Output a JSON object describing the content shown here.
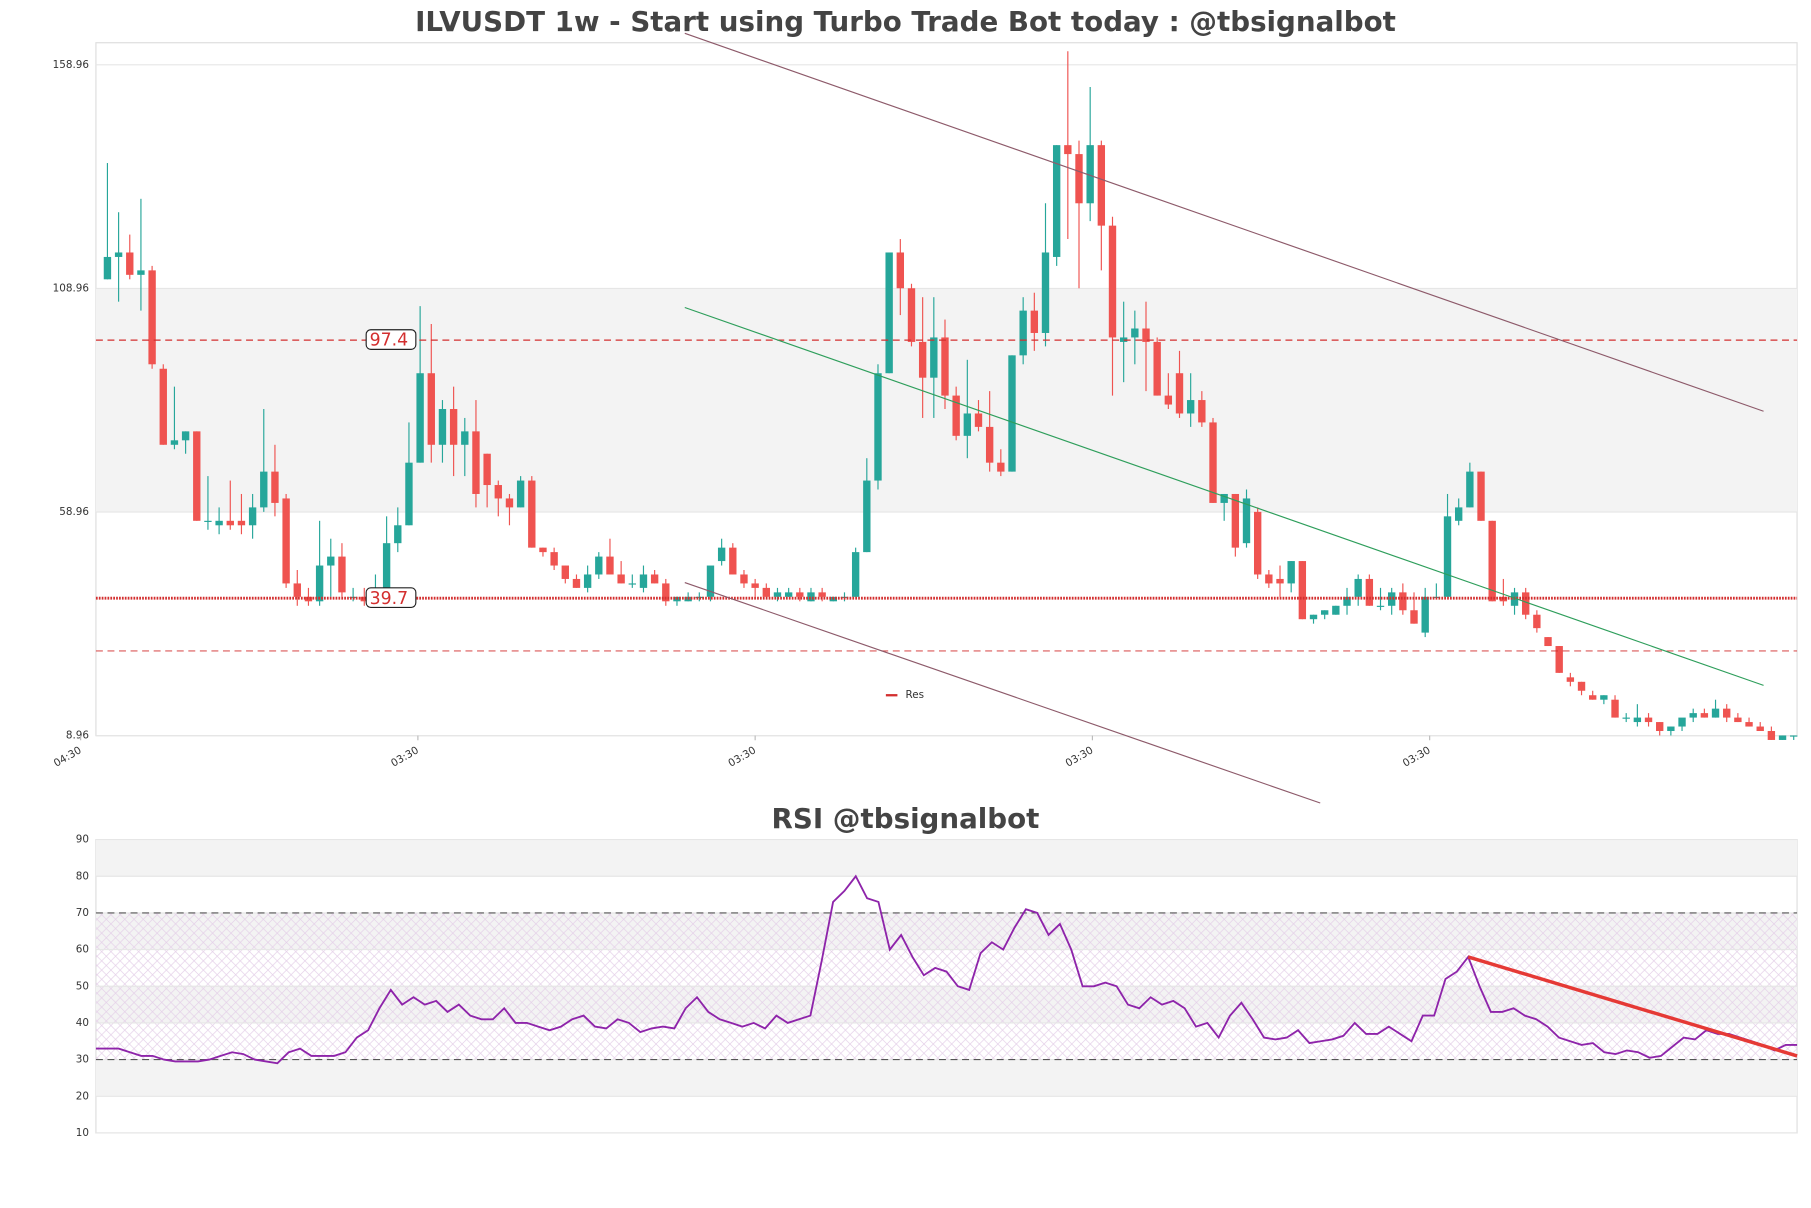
{
  "chart_data": [
    {
      "type": "candlestick",
      "title": "ILVUSDT 1w - Start using Turbo Trade Bot today : @tbsignalbot",
      "open": [
        111,
        116,
        117,
        112,
        113,
        91,
        74,
        75,
        77,
        57,
        56,
        57,
        57,
        56,
        60,
        68,
        62,
        43,
        40,
        39,
        47,
        49,
        40,
        40,
        40,
        40,
        52,
        56,
        70,
        90,
        74,
        82,
        74,
        77,
        72,
        65,
        62,
        60,
        66,
        51,
        50,
        47,
        44,
        42,
        45,
        49,
        45,
        43,
        42,
        45,
        43,
        39,
        39,
        40,
        40,
        48,
        51,
        45,
        43,
        42,
        40,
        40,
        41,
        39,
        41,
        39,
        40,
        40,
        50,
        66,
        90,
        117,
        109,
        97,
        89,
        98,
        85,
        76,
        81,
        78,
        70,
        68,
        94,
        104,
        99,
        116,
        141,
        139,
        128,
        141,
        123,
        97,
        98,
        100,
        97,
        85,
        90,
        81,
        84,
        79,
        61,
        63,
        52,
        59,
        45,
        44,
        43,
        48,
        35,
        36,
        36,
        38,
        40,
        44,
        38,
        38,
        41,
        37,
        32,
        40,
        40,
        57,
        60,
        68,
        57,
        40,
        38,
        41,
        36,
        31,
        29,
        22,
        21,
        18,
        17,
        17,
        13,
        12,
        13,
        12,
        10,
        11,
        13,
        14,
        13,
        15,
        13,
        12,
        11,
        10,
        8,
        9
      ],
      "high": [
        137,
        126,
        121,
        129,
        114,
        92,
        87,
        77,
        77,
        67,
        60,
        66,
        63,
        63,
        82,
        74,
        63,
        46,
        42,
        57,
        53,
        52,
        42,
        42,
        45,
        58,
        60,
        79,
        105,
        101,
        84,
        87,
        80,
        84,
        72,
        66,
        63,
        67,
        67,
        51,
        51,
        47,
        45,
        47,
        50,
        53,
        48,
        45,
        47,
        46,
        44,
        40,
        41,
        41,
        46,
        53,
        52,
        46,
        44,
        43,
        42,
        42,
        42,
        42,
        42,
        40,
        41,
        51,
        71,
        92,
        117,
        120,
        110,
        107,
        107,
        102,
        87,
        93,
        84,
        86,
        73,
        94,
        107,
        108,
        128,
        141,
        162,
        142,
        154,
        142,
        125,
        106,
        104,
        106,
        98,
        90,
        95,
        90,
        86,
        80,
        63,
        63,
        64,
        60,
        46,
        47,
        48,
        48,
        36,
        37,
        38,
        42,
        45,
        45,
        42,
        42,
        43,
        41,
        42,
        43,
        63,
        62,
        70,
        68,
        57,
        44,
        42,
        42,
        37,
        31,
        29,
        23,
        21,
        19,
        18,
        18,
        14,
        16,
        14,
        12,
        11,
        12,
        15,
        15,
        17,
        16,
        14,
        13,
        12,
        11,
        9,
        9
      ],
      "low": [
        111,
        106,
        111,
        104,
        91,
        74,
        73,
        72,
        57,
        55,
        54,
        55,
        54,
        53,
        59,
        58,
        42,
        38,
        38,
        38,
        40,
        40,
        39,
        38,
        39,
        40,
        50,
        56,
        70,
        70,
        70,
        67,
        67,
        60,
        60,
        58,
        56,
        60,
        51,
        49,
        46,
        43,
        42,
        41,
        44,
        45,
        43,
        42,
        41,
        43,
        38,
        38,
        39,
        39,
        39,
        47,
        45,
        42,
        40,
        40,
        39,
        40,
        39,
        39,
        39,
        39,
        39,
        40,
        50,
        64,
        90,
        103,
        96,
        80,
        80,
        82,
        75,
        71,
        77,
        68,
        67,
        68,
        92,
        95,
        96,
        114,
        120,
        109,
        124,
        113,
        85,
        88,
        92,
        86,
        85,
        82,
        80,
        78,
        78,
        61,
        57,
        49,
        51,
        44,
        42,
        40,
        41,
        35,
        34,
        35,
        36,
        36,
        38,
        38,
        37,
        36,
        36,
        34,
        31,
        40,
        40,
        56,
        60,
        57,
        39,
        38,
        36,
        35,
        32,
        29,
        23,
        20,
        18,
        17,
        16,
        13,
        12,
        11,
        11,
        9,
        9,
        10,
        12,
        13,
        13,
        12,
        12,
        11,
        10,
        8,
        8,
        8
      ],
      "close": [
        116,
        117,
        112,
        113,
        92,
        74,
        75,
        77,
        57,
        57,
        57,
        56,
        56,
        60,
        68,
        61,
        43,
        40,
        39,
        47,
        49,
        41,
        40,
        39,
        40,
        52,
        56,
        70,
        90,
        74,
        82,
        74,
        77,
        63,
        65,
        62,
        60,
        66,
        51,
        50,
        47,
        44,
        42,
        45,
        49,
        45,
        43,
        43,
        45,
        43,
        39,
        40,
        40,
        40,
        47,
        51,
        45,
        43,
        42,
        40,
        41,
        41,
        40,
        41,
        40,
        40,
        40,
        50,
        66,
        90,
        117,
        109,
        97,
        89,
        98,
        85,
        76,
        81,
        78,
        70,
        68,
        94,
        104,
        99,
        117,
        141,
        139,
        128,
        141,
        123,
        98,
        98,
        100,
        97,
        85,
        83,
        81,
        84,
        79,
        61,
        63,
        51,
        62,
        45,
        43,
        43,
        48,
        35,
        36,
        37,
        38,
        40,
        44,
        38,
        38,
        41,
        37,
        34,
        40,
        40,
        58,
        60,
        68,
        57,
        39,
        39,
        41,
        36,
        33,
        29,
        23,
        21,
        19,
        17,
        18,
        13,
        13,
        13,
        12,
        10,
        11,
        13,
        14,
        13,
        15,
        13,
        12,
        11,
        10,
        8,
        9,
        9
      ],
      "up_color": "#26a69a",
      "down_color": "#ef5350",
      "xlim": [
        -1.03,
        151.3
      ],
      "xticks": [
        {
          "value": -2.4,
          "label": "04:30"
        },
        {
          "value": 27.8,
          "label": "03:30"
        },
        {
          "value": 58,
          "label": "03:30"
        },
        {
          "value": 88.2,
          "label": "03:30"
        },
        {
          "value": 118.4,
          "label": "03:30"
        }
      ],
      "ylim": [
        8.96,
        163.9
      ],
      "yticks": [
        8.96,
        58.96,
        108.96,
        158.96
      ],
      "grid": true,
      "zone": [
        58.96,
        108.96
      ],
      "labeled_levels": [
        97.4,
        39.7
      ],
      "levels": [
        27.9
      ],
      "level_color": "#d32f2f",
      "trendlines": [
        {
          "color": "#2e9e5b",
          "x": [
            51.7,
            148.3
          ],
          "y": [
            104.7,
            20.2
          ]
        },
        {
          "color": "#8d5a6a",
          "x": [
            51.7,
            148.3
          ],
          "y": [
            166,
            81.5
          ]
        },
        {
          "color": "#8d5a6a",
          "x": [
            51.7,
            108.6
          ],
          "y": [
            43.2,
            -6.1
          ]
        }
      ],
      "legend": {
        "name": "Res",
        "color": "#d32f2f"
      }
    },
    {
      "type": "line",
      "title": "RSI @tbsignalbot",
      "values": [
        33,
        33,
        33,
        32,
        31,
        31,
        30,
        29.5,
        29.5,
        29.5,
        30,
        31,
        32,
        31.5,
        30,
        29.5,
        29,
        32,
        33,
        31,
        31,
        31,
        32,
        36,
        38,
        44,
        49,
        45,
        47,
        45,
        46,
        43,
        45,
        42,
        41,
        41,
        44,
        40,
        40,
        39,
        38,
        39,
        41,
        42,
        39,
        38.5,
        41,
        40,
        37.5,
        38.5,
        39,
        38.5,
        44,
        47,
        43,
        41,
        40,
        39,
        40,
        38.5,
        42,
        40,
        41,
        42,
        57,
        73,
        76,
        80,
        74,
        73,
        60,
        64,
        58,
        53,
        55,
        54,
        50,
        49,
        59,
        62,
        60,
        66,
        71,
        70,
        64,
        67,
        60,
        50,
        50,
        51,
        50,
        45,
        44,
        47,
        45,
        46,
        44,
        39,
        40,
        36,
        42,
        45.5,
        41,
        36,
        35.5,
        36,
        38,
        34.5,
        35,
        35.5,
        36.5,
        40,
        37,
        37,
        39,
        37,
        35,
        42,
        42,
        52,
        54,
        58,
        50,
        43,
        43,
        44,
        42,
        41,
        39,
        36,
        35,
        34,
        34.5,
        32,
        31.5,
        32.5,
        32,
        30.5,
        31,
        33.5,
        36,
        35.5,
        38,
        37,
        37,
        36,
        35,
        34,
        32.5,
        34,
        34
      ],
      "color": "#8e24aa",
      "xlim": [
        0,
        150
      ],
      "ylim": [
        10,
        90
      ],
      "yticks": [
        10,
        20,
        30,
        40,
        50,
        60,
        70,
        80,
        90
      ],
      "levels": [
        70,
        30
      ],
      "trendline": {
        "color": "#e53935",
        "x": [
          121,
          150
        ],
        "y": [
          58,
          31
        ]
      }
    }
  ]
}
